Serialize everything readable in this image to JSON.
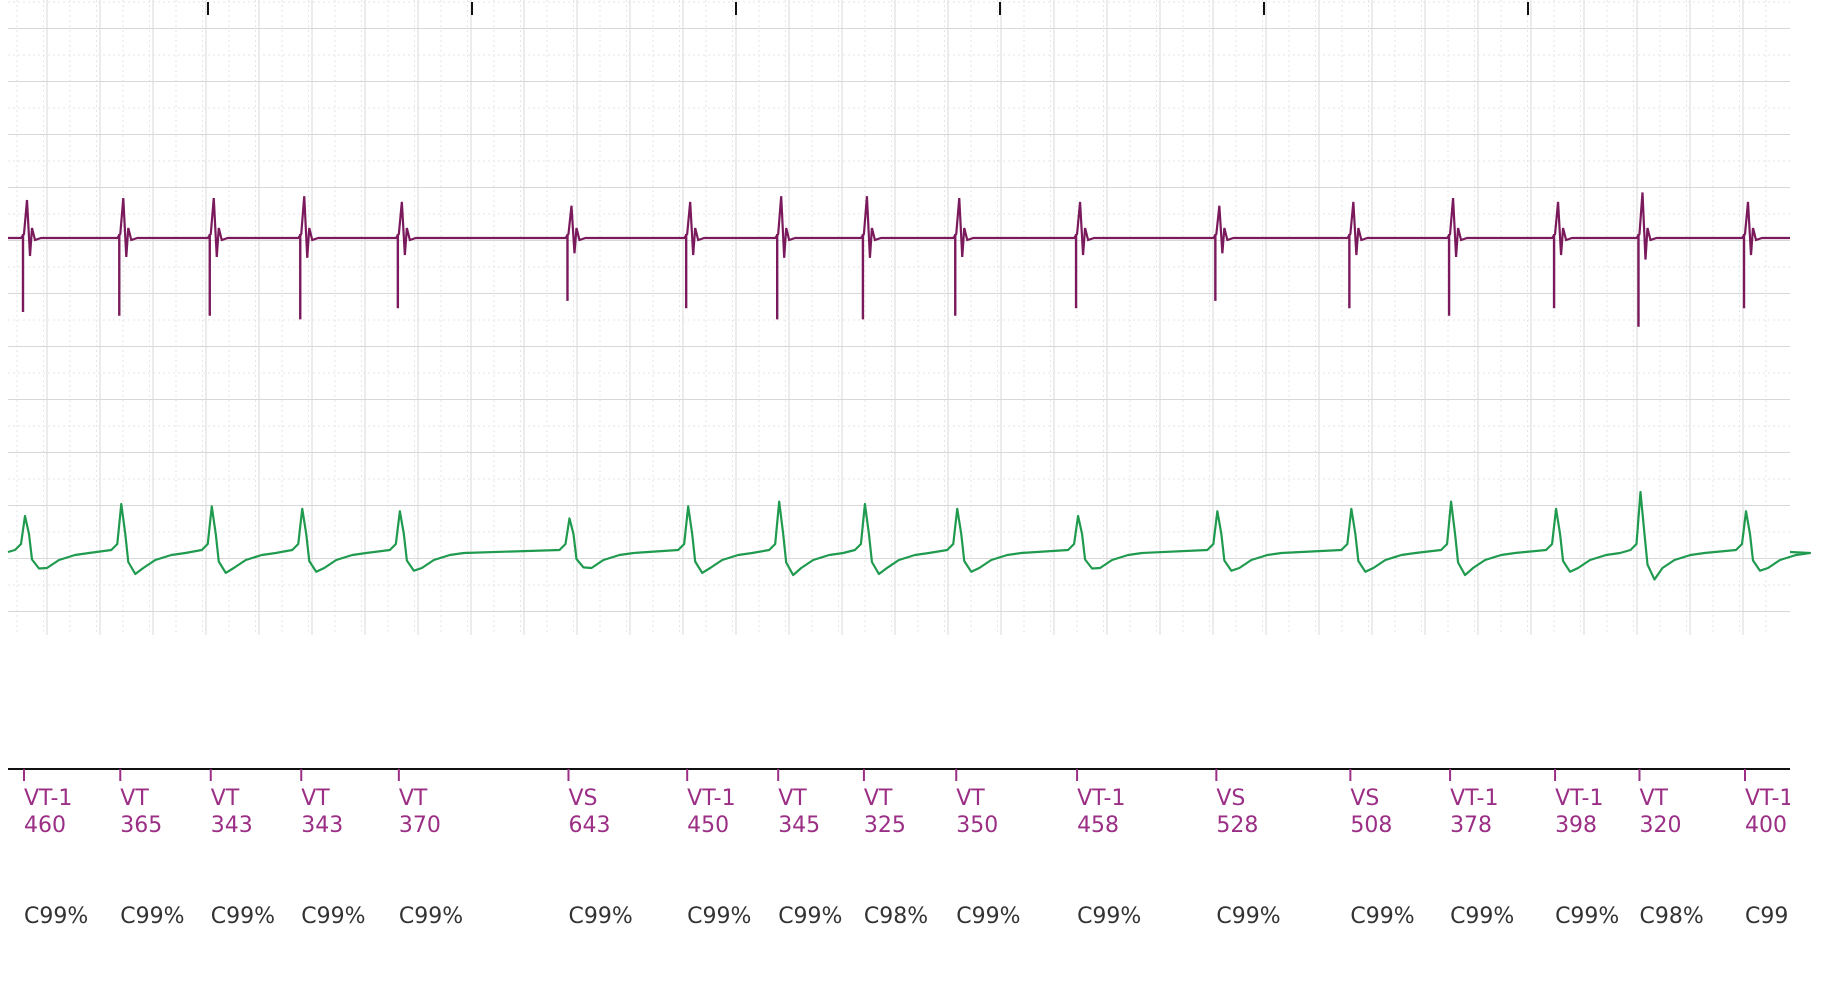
{
  "chart_data": {
    "type": "line",
    "colors": {
      "egm_upper": "#7a1a5c",
      "egm_lower": "#1f9a4e",
      "marker": "#9b2f86",
      "confidence": "#333333",
      "grid_major": "#d8d8d8",
      "grid_minor": "#e6e6e6",
      "baseline": "#111111"
    },
    "grid": true,
    "beats": [
      {
        "label": "VT-1",
        "interval": "460",
        "confidence": "C99%",
        "upper_amp": 1.0,
        "lower_amp": 0.75
      },
      {
        "label": "VT",
        "interval": "365",
        "confidence": "C99%",
        "upper_amp": 1.05,
        "lower_amp": 1.0
      },
      {
        "label": "VT",
        "interval": "343",
        "confidence": "C99%",
        "upper_amp": 1.05,
        "lower_amp": 0.95
      },
      {
        "label": "VT",
        "interval": "343",
        "confidence": "C99%",
        "upper_amp": 1.1,
        "lower_amp": 0.9
      },
      {
        "label": "VT",
        "interval": "370",
        "confidence": "C99%",
        "upper_amp": 0.95,
        "lower_amp": 0.85
      },
      {
        "label": "VS",
        "interval": "643",
        "confidence": "C99%",
        "upper_amp": 0.85,
        "lower_amp": 0.7
      },
      {
        "label": "VT-1",
        "interval": "450",
        "confidence": "C99%",
        "upper_amp": 0.95,
        "lower_amp": 0.95
      },
      {
        "label": "VT",
        "interval": "345",
        "confidence": "C99%",
        "upper_amp": 1.1,
        "lower_amp": 1.05
      },
      {
        "label": "VT",
        "interval": "325",
        "confidence": "C98%",
        "upper_amp": 1.1,
        "lower_amp": 1.0
      },
      {
        "label": "VT",
        "interval": "350",
        "confidence": "C99%",
        "upper_amp": 1.05,
        "lower_amp": 0.9
      },
      {
        "label": "VT-1",
        "interval": "458",
        "confidence": "C99%",
        "upper_amp": 0.95,
        "lower_amp": 0.75
      },
      {
        "label": "VS",
        "interval": "528",
        "confidence": "C99%",
        "upper_amp": 0.85,
        "lower_amp": 0.85
      },
      {
        "label": "VS",
        "interval": "508",
        "confidence": "C99%",
        "upper_amp": 0.95,
        "lower_amp": 0.9
      },
      {
        "label": "VT-1",
        "interval": "378",
        "confidence": "C99%",
        "upper_amp": 1.05,
        "lower_amp": 1.05
      },
      {
        "label": "VT-1",
        "interval": "398",
        "confidence": "C99%",
        "upper_amp": 0.95,
        "lower_amp": 0.9
      },
      {
        "label": "VT",
        "interval": "320",
        "confidence": "C98%",
        "upper_amp": 1.2,
        "lower_amp": 1.25
      },
      {
        "label": "VT-1",
        "interval": "400",
        "confidence": "C99",
        "upper_amp": 0.95,
        "lower_amp": 0.85
      }
    ]
  }
}
